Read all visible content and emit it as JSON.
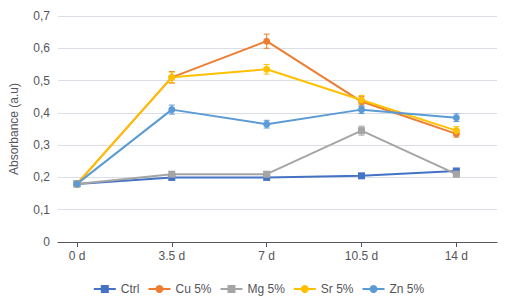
{
  "chart_data": {
    "type": "line",
    "x": [
      0,
      3.5,
      7,
      10.5,
      14
    ],
    "xlim": [
      -0.7,
      15.5
    ],
    "xticks": [
      {
        "value": 0,
        "label": "0 d"
      },
      {
        "value": 3.5,
        "label": "3.5 d"
      },
      {
        "value": 7,
        "label": "7 d"
      },
      {
        "value": 10.5,
        "label": "10.5 d"
      },
      {
        "value": 14,
        "label": "14 d"
      }
    ],
    "ylabel": "Absorbance (a.u)",
    "ylim": [
      0,
      0.7
    ],
    "yticks": [
      0,
      {
        "value": 0.1,
        "label": "0,1"
      },
      {
        "value": 0.2,
        "label": "0,2"
      },
      {
        "value": 0.3,
        "label": "0,3"
      },
      {
        "value": 0.4,
        "label": "0,4"
      },
      {
        "value": 0.5,
        "label": "0,5"
      },
      {
        "value": 0.6,
        "label": "0,6"
      },
      {
        "value": 0.7,
        "label": "0,7"
      }
    ],
    "grid": true,
    "legend": "bottom",
    "series": [
      {
        "name": "Ctrl",
        "color": "#4472c4",
        "marker": "square",
        "values": [
          0.18,
          0.2,
          0.2,
          0.205,
          0.22
        ],
        "yerr": [
          0.004,
          0.004,
          0.004,
          0.004,
          0.004
        ]
      },
      {
        "name": "Cu 5%",
        "color": "#ed7d31",
        "marker": "circle",
        "values": [
          0.18,
          0.51,
          0.622,
          0.435,
          0.335
        ],
        "yerr": [
          0.004,
          0.018,
          0.022,
          0.016,
          0.01
        ]
      },
      {
        "name": "Mg 5%",
        "color": "#a5a5a5",
        "marker": "square",
        "values": [
          0.18,
          0.21,
          0.21,
          0.345,
          0.21
        ],
        "yerr": [
          0.004,
          0.008,
          0.008,
          0.014,
          0.008
        ]
      },
      {
        "name": "Sr 5%",
        "color": "#ffc000",
        "marker": "circle",
        "values": [
          0.18,
          0.51,
          0.535,
          0.44,
          0.345
        ],
        "yerr": [
          0.004,
          0.016,
          0.015,
          0.014,
          0.012
        ]
      },
      {
        "name": "Zn 5%",
        "color": "#5b9bd5",
        "marker": "circle",
        "values": [
          0.18,
          0.41,
          0.365,
          0.41,
          0.385
        ],
        "yerr": [
          0.004,
          0.014,
          0.012,
          0.012,
          0.012
        ]
      }
    ]
  }
}
